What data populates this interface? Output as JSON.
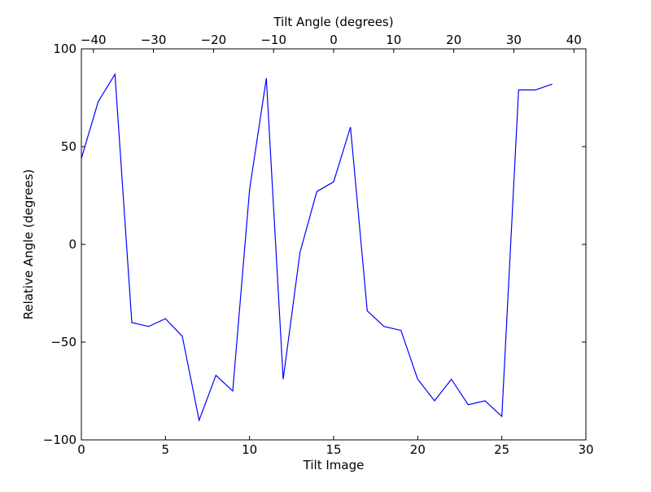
{
  "chart_data": {
    "type": "line",
    "xlabel": "Tilt Image",
    "ylabel": "Relative Angle (degrees)",
    "top_xlabel": "Tilt Angle (degrees)",
    "xlim": [
      0,
      30
    ],
    "ylim": [
      -100,
      100
    ],
    "top_xlim": [
      -42,
      42
    ],
    "xticks": [
      0,
      5,
      10,
      15,
      20,
      25,
      30
    ],
    "yticks": [
      -100,
      -50,
      0,
      50,
      100
    ],
    "top_xticks": [
      -40,
      -30,
      -20,
      -10,
      0,
      10,
      20,
      30,
      40
    ],
    "xtick_labels": [
      "0",
      "5",
      "10",
      "15",
      "20",
      "25",
      "30"
    ],
    "ytick_labels": [
      "−100",
      "−50",
      "0",
      "50",
      "100"
    ],
    "top_xtick_labels": [
      "−40",
      "−30",
      "−20",
      "−10",
      "0",
      "10",
      "20",
      "30",
      "40"
    ],
    "grid": false,
    "line_color": "#0000ff",
    "series": [
      {
        "x": [
          0,
          1,
          2,
          3,
          4,
          5,
          6,
          7,
          8,
          9,
          10,
          11,
          12,
          13,
          14,
          15,
          16,
          17,
          18,
          19,
          20,
          21,
          22,
          23,
          24,
          25,
          26,
          27,
          28
        ],
        "values": [
          44,
          73,
          87,
          -40,
          -42,
          -38,
          -47,
          -90,
          -67,
          -75,
          28,
          85,
          -69,
          -4,
          27,
          32,
          60,
          -34,
          -42,
          -44,
          -69,
          -80,
          -69,
          -82,
          -80,
          -88,
          79,
          79,
          82
        ]
      }
    ]
  }
}
